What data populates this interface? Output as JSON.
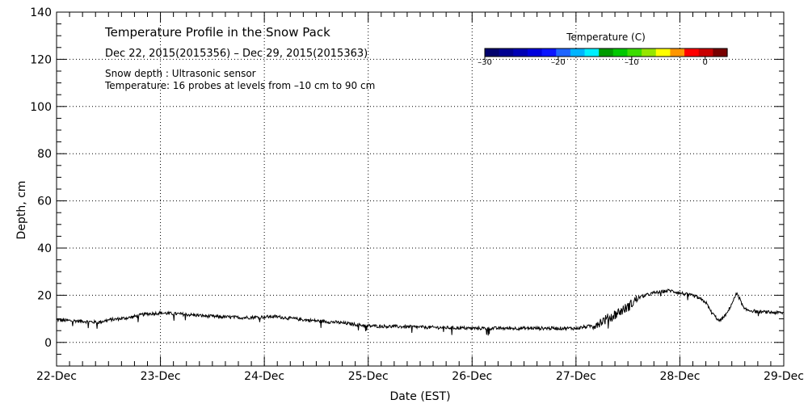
{
  "chart_data": {
    "type": "line",
    "title": "Temperature Profile in the Snow Pack",
    "subtitle": "Dec 22, 2015(2015356) – Dec 29, 2015(2015363)",
    "notes": [
      "Snow depth : Ultrasonic sensor",
      "Temperature: 16 probes at levels from –10 cm to 90 cm"
    ],
    "xlabel": "Date (EST)",
    "ylabel": "Depth, cm",
    "x_tick_labels": [
      "22-Dec",
      "23-Dec",
      "24-Dec",
      "25-Dec",
      "26-Dec",
      "27-Dec",
      "28-Dec",
      "29-Dec"
    ],
    "y_tick_labels": [
      "0",
      "20",
      "40",
      "60",
      "80",
      "100",
      "120",
      "140"
    ],
    "xlim": [
      0,
      7
    ],
    "ylim": [
      -10,
      140
    ],
    "grid": true,
    "legend": {
      "title": "Temperature (C)",
      "placement": "top-right",
      "tick_labels": [
        "–30",
        "–20",
        "–10",
        "0"
      ],
      "tick_values": [
        -30,
        -20,
        -10,
        0
      ],
      "range": [
        -30,
        3
      ],
      "colors": [
        "#00006b",
        "#000090",
        "#0000b4",
        "#0000dc",
        "#0a14ff",
        "#1e64ff",
        "#00b4ff",
        "#00f0ff",
        "#009b00",
        "#00c800",
        "#3cdc00",
        "#96e600",
        "#ffff00",
        "#ff9600",
        "#ff0000",
        "#c80000",
        "#780000"
      ]
    },
    "series": [
      {
        "color": "#000000",
        "x": [
          0,
          0.25,
          0.4,
          0.5,
          0.7,
          0.85,
          1.0,
          1.2,
          1.5,
          1.8,
          2.1,
          2.4,
          2.7,
          3.0,
          3.5,
          4.0,
          4.5,
          4.9,
          5.0,
          5.15,
          5.3,
          5.5,
          5.6,
          5.75,
          5.9,
          6.0,
          6.15,
          6.25,
          6.3,
          6.38,
          6.45,
          6.55,
          6.62,
          6.75,
          7.0
        ],
        "y": [
          9.5,
          9,
          8.5,
          9.5,
          10.5,
          12,
          12.5,
          12,
          11,
          10.5,
          11,
          9.5,
          8.5,
          7,
          6.5,
          6,
          6,
          6,
          6,
          7,
          10,
          15,
          19,
          21,
          22,
          21,
          19.5,
          17,
          13,
          9,
          12,
          21,
          14,
          13,
          12.5
        ],
        "noise_amplitude": 0.7
      }
    ]
  }
}
